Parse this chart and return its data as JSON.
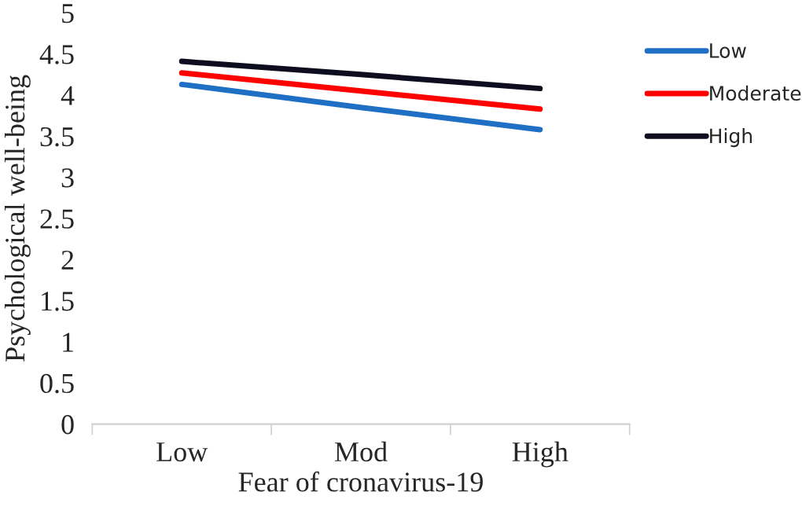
{
  "chart_data": {
    "type": "line",
    "xlabel": "Fear of cronavirus-19",
    "ylabel": "Psychological well-being",
    "categories": [
      "Low",
      "Mod",
      "High"
    ],
    "series": [
      {
        "name": "Low",
        "color": "#1f6fc5",
        "values": [
          4.13,
          3.85,
          3.58
        ]
      },
      {
        "name": "Moderate",
        "color": "#ff0000",
        "values": [
          4.27,
          4.05,
          3.83
        ]
      },
      {
        "name": "High",
        "color": "#0d0d1f",
        "values": [
          4.41,
          4.25,
          4.08
        ]
      }
    ],
    "ylim": [
      0,
      5
    ],
    "yticks": [
      0,
      0.5,
      1,
      1.5,
      2,
      2.5,
      3,
      3.5,
      4,
      4.5,
      5
    ],
    "grid": false,
    "legend": "right",
    "marker": "none",
    "line_style": "solid"
  }
}
